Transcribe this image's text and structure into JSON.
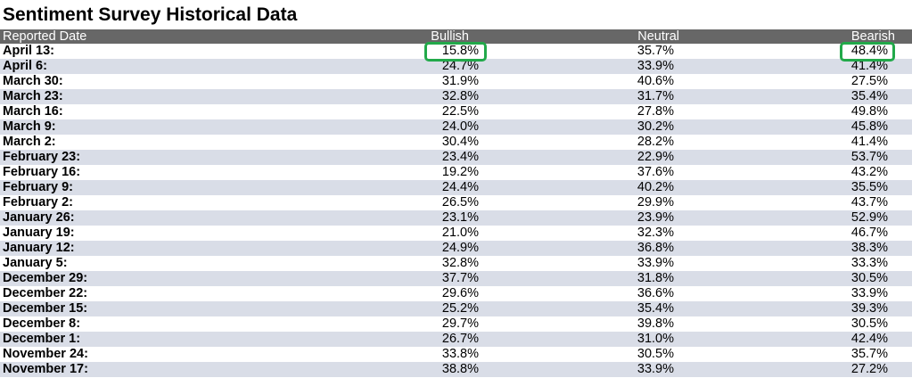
{
  "title": "Sentiment Survey Historical Data",
  "columns": [
    "Reported Date",
    "Bullish",
    "Neutral",
    "Bearish"
  ],
  "rows": [
    {
      "date": "April 13:",
      "bullish": "15.8%",
      "neutral": "35.7%",
      "bearish": "48.4%"
    },
    {
      "date": "April 6:",
      "bullish": "24.7%",
      "neutral": "33.9%",
      "bearish": "41.4%"
    },
    {
      "date": "March 30:",
      "bullish": "31.9%",
      "neutral": "40.6%",
      "bearish": "27.5%"
    },
    {
      "date": "March 23:",
      "bullish": "32.8%",
      "neutral": "31.7%",
      "bearish": "35.4%"
    },
    {
      "date": "March 16:",
      "bullish": "22.5%",
      "neutral": "27.8%",
      "bearish": "49.8%"
    },
    {
      "date": "March 9:",
      "bullish": "24.0%",
      "neutral": "30.2%",
      "bearish": "45.8%"
    },
    {
      "date": "March 2:",
      "bullish": "30.4%",
      "neutral": "28.2%",
      "bearish": "41.4%"
    },
    {
      "date": "February 23:",
      "bullish": "23.4%",
      "neutral": "22.9%",
      "bearish": "53.7%"
    },
    {
      "date": "February 16:",
      "bullish": "19.2%",
      "neutral": "37.6%",
      "bearish": "43.2%"
    },
    {
      "date": "February 9:",
      "bullish": "24.4%",
      "neutral": "40.2%",
      "bearish": "35.5%"
    },
    {
      "date": "February 2:",
      "bullish": "26.5%",
      "neutral": "29.9%",
      "bearish": "43.7%"
    },
    {
      "date": "January 26:",
      "bullish": "23.1%",
      "neutral": "23.9%",
      "bearish": "52.9%"
    },
    {
      "date": "January 19:",
      "bullish": "21.0%",
      "neutral": "32.3%",
      "bearish": "46.7%"
    },
    {
      "date": "January 12:",
      "bullish": "24.9%",
      "neutral": "36.8%",
      "bearish": "38.3%"
    },
    {
      "date": "January 5:",
      "bullish": "32.8%",
      "neutral": "33.9%",
      "bearish": "33.3%"
    },
    {
      "date": "December 29:",
      "bullish": "37.7%",
      "neutral": "31.8%",
      "bearish": "30.5%"
    },
    {
      "date": "December 22:",
      "bullish": "29.6%",
      "neutral": "36.6%",
      "bearish": "33.9%"
    },
    {
      "date": "December 15:",
      "bullish": "25.2%",
      "neutral": "35.4%",
      "bearish": "39.3%"
    },
    {
      "date": "December 8:",
      "bullish": "29.7%",
      "neutral": "39.8%",
      "bearish": "30.5%"
    },
    {
      "date": "December 1:",
      "bullish": "26.7%",
      "neutral": "31.0%",
      "bearish": "42.4%"
    },
    {
      "date": "November 24:",
      "bullish": "33.8%",
      "neutral": "30.5%",
      "bearish": "35.7%"
    },
    {
      "date": "November 17:",
      "bullish": "38.8%",
      "neutral": "33.9%",
      "bearish": "27.2%"
    }
  ],
  "highlights": [
    {
      "row": 0,
      "column": "bullish",
      "color": "#22a94a"
    },
    {
      "row": 0,
      "column": "bearish",
      "color": "#22a94a"
    }
  ],
  "colors": {
    "header_bg": "#676767",
    "stripe_bg": "#d9dde7",
    "highlight": "#22a94a"
  }
}
